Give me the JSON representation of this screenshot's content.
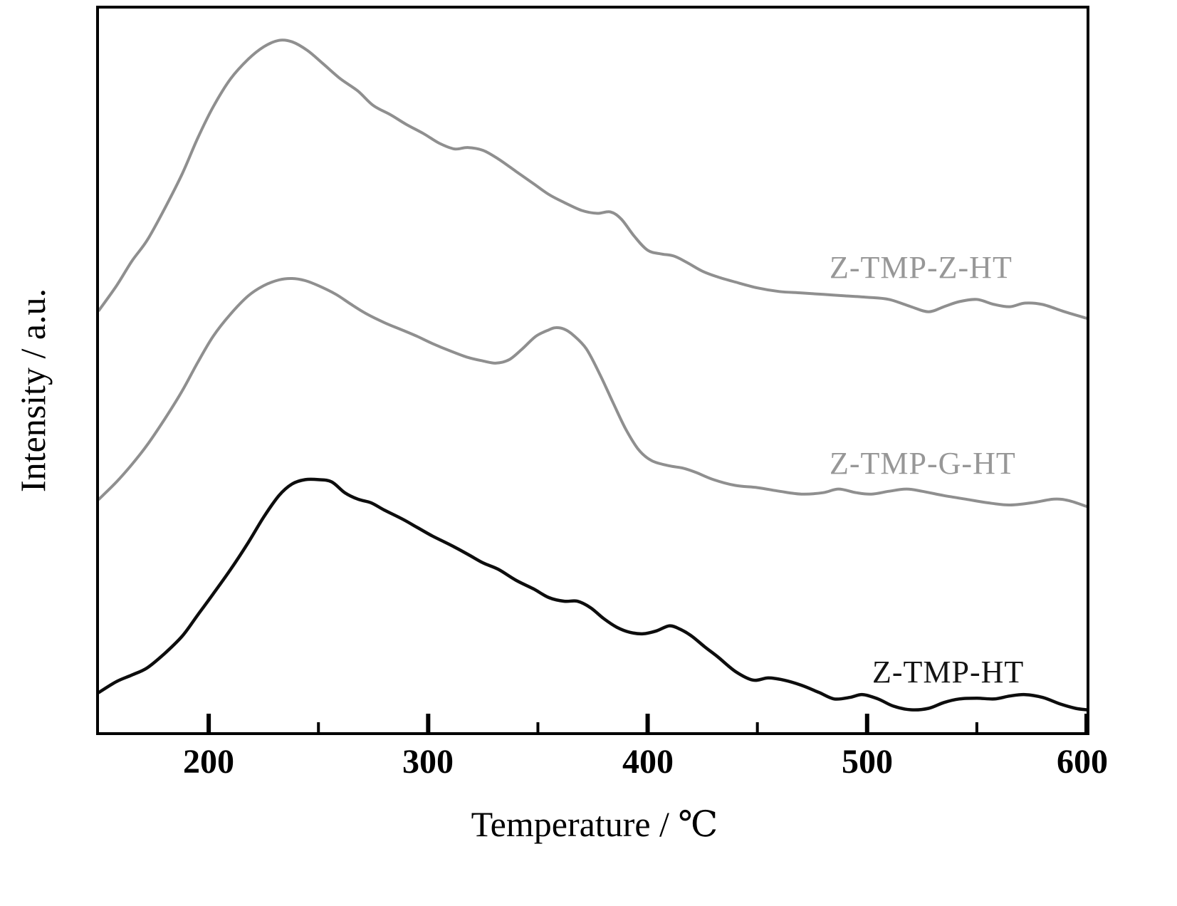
{
  "chart_data": {
    "type": "line",
    "title": "",
    "xlabel": "Temperature / ℃",
    "ylabel": "Intensity / a.u.",
    "xlim": [
      150,
      600
    ],
    "ylim": [
      0,
      1
    ],
    "grid": false,
    "legend": "inline-labels",
    "x_tick_labels": [
      "200",
      "300",
      "400",
      "500",
      "600"
    ],
    "x_ticks_major": [
      200,
      300,
      400,
      500,
      600
    ],
    "x_ticks_minor": [
      250,
      350,
      450,
      550
    ],
    "frame_color": "#000000",
    "series": [
      {
        "name": "Z-TMP-Z-HT",
        "color": "#8f8f8f",
        "label_color": "#979797",
        "points": [
          [
            150,
            0.583
          ],
          [
            158,
            0.617
          ],
          [
            165,
            0.651
          ],
          [
            172,
            0.68
          ],
          [
            180,
            0.724
          ],
          [
            188,
            0.772
          ],
          [
            195,
            0.821
          ],
          [
            202,
            0.864
          ],
          [
            210,
            0.903
          ],
          [
            218,
            0.93
          ],
          [
            225,
            0.947
          ],
          [
            232,
            0.956
          ],
          [
            238,
            0.954
          ],
          [
            245,
            0.942
          ],
          [
            252,
            0.924
          ],
          [
            260,
            0.903
          ],
          [
            268,
            0.886
          ],
          [
            275,
            0.866
          ],
          [
            283,
            0.853
          ],
          [
            290,
            0.84
          ],
          [
            298,
            0.827
          ],
          [
            305,
            0.814
          ],
          [
            312,
            0.806
          ],
          [
            318,
            0.808
          ],
          [
            325,
            0.804
          ],
          [
            332,
            0.792
          ],
          [
            340,
            0.775
          ],
          [
            348,
            0.758
          ],
          [
            355,
            0.743
          ],
          [
            362,
            0.732
          ],
          [
            370,
            0.721
          ],
          [
            377,
            0.717
          ],
          [
            383,
            0.719
          ],
          [
            388,
            0.709
          ],
          [
            394,
            0.685
          ],
          [
            400,
            0.666
          ],
          [
            406,
            0.661
          ],
          [
            412,
            0.658
          ],
          [
            418,
            0.649
          ],
          [
            425,
            0.637
          ],
          [
            432,
            0.629
          ],
          [
            440,
            0.622
          ],
          [
            450,
            0.614
          ],
          [
            460,
            0.609
          ],
          [
            470,
            0.607
          ],
          [
            480,
            0.605
          ],
          [
            490,
            0.603
          ],
          [
            500,
            0.601
          ],
          [
            510,
            0.598
          ],
          [
            520,
            0.588
          ],
          [
            528,
            0.581
          ],
          [
            535,
            0.588
          ],
          [
            542,
            0.595
          ],
          [
            550,
            0.598
          ],
          [
            558,
            0.591
          ],
          [
            565,
            0.588
          ],
          [
            572,
            0.593
          ],
          [
            580,
            0.591
          ],
          [
            590,
            0.581
          ],
          [
            600,
            0.572
          ]
        ]
      },
      {
        "name": "Z-TMP-G-HT",
        "color": "#8f8f8f",
        "label_color": "#979797",
        "points": [
          [
            150,
            0.322
          ],
          [
            158,
            0.346
          ],
          [
            165,
            0.37
          ],
          [
            172,
            0.397
          ],
          [
            180,
            0.433
          ],
          [
            188,
            0.472
          ],
          [
            195,
            0.511
          ],
          [
            202,
            0.547
          ],
          [
            210,
            0.578
          ],
          [
            218,
            0.603
          ],
          [
            225,
            0.617
          ],
          [
            232,
            0.625
          ],
          [
            238,
            0.627
          ],
          [
            244,
            0.624
          ],
          [
            250,
            0.617
          ],
          [
            258,
            0.605
          ],
          [
            265,
            0.591
          ],
          [
            272,
            0.578
          ],
          [
            280,
            0.566
          ],
          [
            288,
            0.556
          ],
          [
            295,
            0.547
          ],
          [
            302,
            0.537
          ],
          [
            310,
            0.527
          ],
          [
            318,
            0.518
          ],
          [
            325,
            0.513
          ],
          [
            331,
            0.51
          ],
          [
            337,
            0.515
          ],
          [
            343,
            0.53
          ],
          [
            349,
            0.547
          ],
          [
            355,
            0.556
          ],
          [
            358,
            0.559
          ],
          [
            362,
            0.557
          ],
          [
            366,
            0.549
          ],
          [
            372,
            0.53
          ],
          [
            378,
            0.496
          ],
          [
            384,
            0.457
          ],
          [
            390,
            0.419
          ],
          [
            396,
            0.39
          ],
          [
            402,
            0.375
          ],
          [
            410,
            0.368
          ],
          [
            416,
            0.365
          ],
          [
            422,
            0.359
          ],
          [
            430,
            0.349
          ],
          [
            440,
            0.341
          ],
          [
            450,
            0.338
          ],
          [
            460,
            0.333
          ],
          [
            470,
            0.329
          ],
          [
            480,
            0.331
          ],
          [
            487,
            0.336
          ],
          [
            495,
            0.331
          ],
          [
            502,
            0.329
          ],
          [
            510,
            0.333
          ],
          [
            518,
            0.336
          ],
          [
            525,
            0.333
          ],
          [
            535,
            0.327
          ],
          [
            545,
            0.322
          ],
          [
            555,
            0.317
          ],
          [
            565,
            0.314
          ],
          [
            575,
            0.317
          ],
          [
            585,
            0.322
          ],
          [
            592,
            0.32
          ],
          [
            600,
            0.312
          ]
        ]
      },
      {
        "name": "Z-TMP-HT",
        "color": "#0d0d0d",
        "label_color": "#141414",
        "points": [
          [
            150,
            0.055
          ],
          [
            158,
            0.07
          ],
          [
            165,
            0.079
          ],
          [
            172,
            0.089
          ],
          [
            180,
            0.109
          ],
          [
            188,
            0.133
          ],
          [
            195,
            0.162
          ],
          [
            202,
            0.191
          ],
          [
            210,
            0.225
          ],
          [
            218,
            0.262
          ],
          [
            225,
            0.297
          ],
          [
            232,
            0.327
          ],
          [
            238,
            0.343
          ],
          [
            244,
            0.349
          ],
          [
            250,
            0.349
          ],
          [
            256,
            0.346
          ],
          [
            262,
            0.331
          ],
          [
            268,
            0.322
          ],
          [
            274,
            0.317
          ],
          [
            280,
            0.307
          ],
          [
            288,
            0.295
          ],
          [
            295,
            0.283
          ],
          [
            302,
            0.271
          ],
          [
            310,
            0.259
          ],
          [
            318,
            0.246
          ],
          [
            325,
            0.234
          ],
          [
            332,
            0.225
          ],
          [
            340,
            0.21
          ],
          [
            348,
            0.198
          ],
          [
            355,
            0.186
          ],
          [
            362,
            0.181
          ],
          [
            368,
            0.181
          ],
          [
            374,
            0.172
          ],
          [
            380,
            0.157
          ],
          [
            386,
            0.145
          ],
          [
            392,
            0.138
          ],
          [
            398,
            0.136
          ],
          [
            404,
            0.14
          ],
          [
            410,
            0.147
          ],
          [
            415,
            0.142
          ],
          [
            420,
            0.133
          ],
          [
            426,
            0.118
          ],
          [
            432,
            0.104
          ],
          [
            440,
            0.084
          ],
          [
            448,
            0.072
          ],
          [
            455,
            0.075
          ],
          [
            462,
            0.072
          ],
          [
            470,
            0.065
          ],
          [
            478,
            0.055
          ],
          [
            485,
            0.046
          ],
          [
            492,
            0.048
          ],
          [
            498,
            0.052
          ],
          [
            505,
            0.046
          ],
          [
            512,
            0.036
          ],
          [
            520,
            0.031
          ],
          [
            528,
            0.033
          ],
          [
            535,
            0.041
          ],
          [
            542,
            0.046
          ],
          [
            550,
            0.047
          ],
          [
            558,
            0.046
          ],
          [
            565,
            0.05
          ],
          [
            572,
            0.052
          ],
          [
            580,
            0.048
          ],
          [
            588,
            0.039
          ],
          [
            595,
            0.033
          ],
          [
            600,
            0.031
          ]
        ]
      }
    ]
  }
}
